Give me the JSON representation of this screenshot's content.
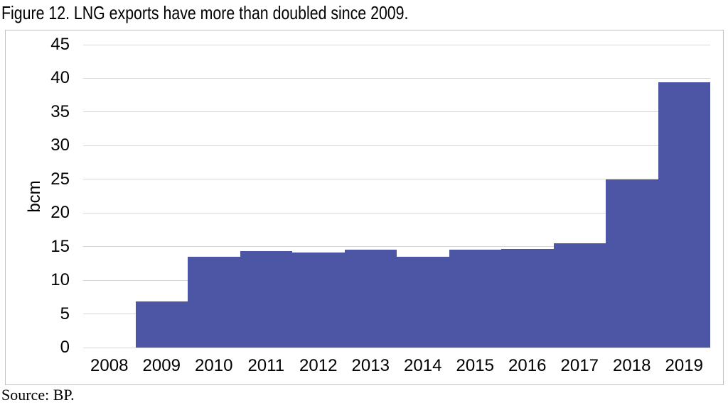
{
  "title": "Figure 12. LNG exports have more than doubled since 2009.",
  "source": "Source: BP.",
  "colors": {
    "bar": "#4d56a4",
    "gridline": "#d9d9d9",
    "box_border": "#c2c2c2",
    "text": "#000000"
  },
  "chart_data": {
    "type": "bar",
    "title": "Figure 12. LNG exports have more than doubled since 2009.",
    "categories": [
      "2008",
      "2009",
      "2010",
      "2011",
      "2012",
      "2013",
      "2014",
      "2015",
      "2016",
      "2017",
      "2018",
      "2019"
    ],
    "values": [
      0,
      6.8,
      13.5,
      14.3,
      14.1,
      14.5,
      13.5,
      14.5,
      14.6,
      15.5,
      25.0,
      39.4
    ],
    "xlabel": "",
    "ylabel": "bcm",
    "ylim": [
      0,
      45
    ],
    "yticks": [
      0,
      5,
      10,
      15,
      20,
      25,
      30,
      35,
      40,
      45
    ],
    "grid": true,
    "legend": false,
    "bar_gap": 0,
    "source": "Source: BP."
  }
}
